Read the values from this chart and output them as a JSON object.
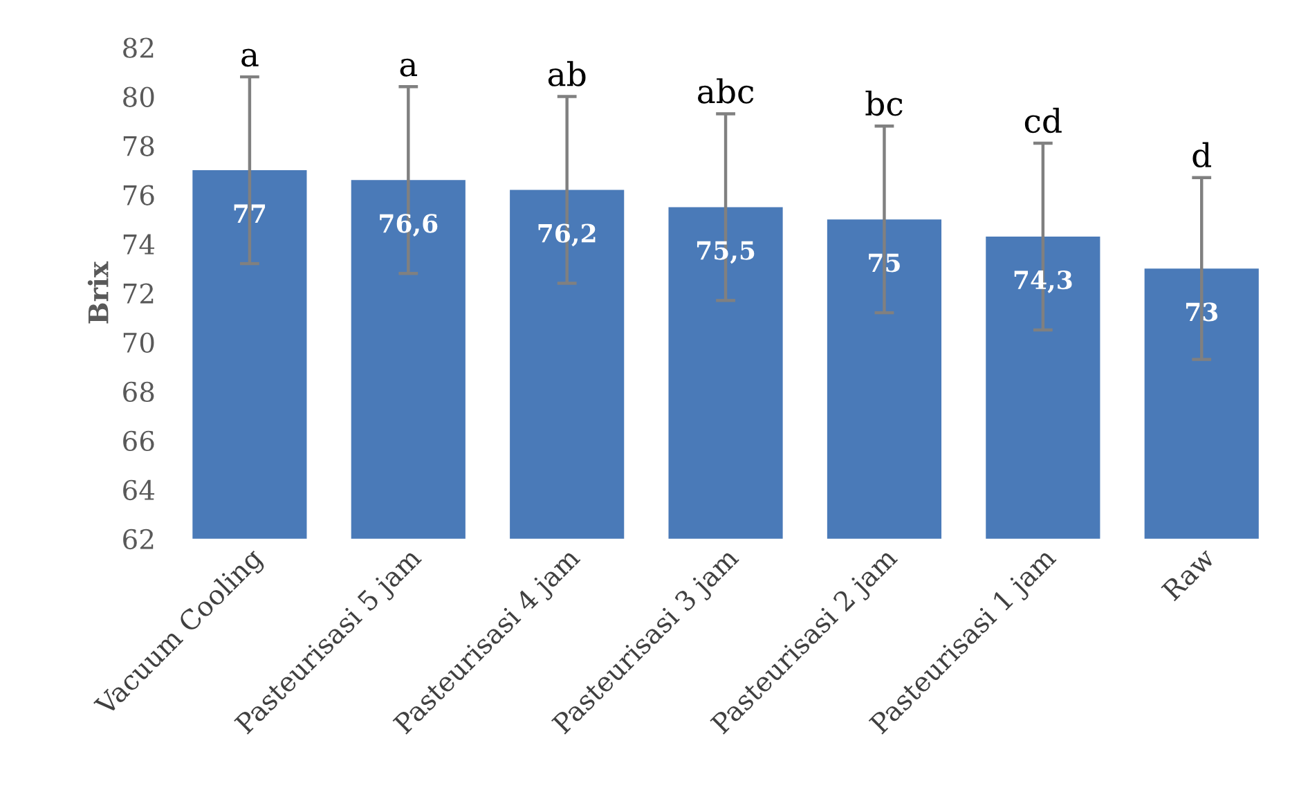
{
  "chart_data": {
    "type": "bar",
    "ylabel": "Brix",
    "categories": [
      "Vacuum Cooling",
      "Pasteurisasi 5 jam",
      "Pasteurisasi 4 jam",
      "Pasteurisasi 3 jam",
      "Pasteurisasi 2 jam",
      "Pasteurisasi 1 jam",
      "Raw"
    ],
    "values": [
      77,
      76.6,
      76.2,
      75.5,
      75,
      74.3,
      73
    ],
    "value_labels": [
      "77",
      "76,6",
      "76,2",
      "75,5",
      "75",
      "74,3",
      "73"
    ],
    "errors": [
      3.8,
      3.8,
      3.8,
      3.8,
      3.8,
      3.8,
      3.7
    ],
    "color": "#4a7ab8",
    "ylim": [
      62,
      82
    ],
    "yticks": [
      62,
      64,
      66,
      68,
      70,
      72,
      74,
      76,
      78,
      80,
      82
    ],
    "grid": false,
    "legend": false,
    "annotations": [
      {
        "text": "a",
        "x": "Vacuum Cooling",
        "y": 80.8
      },
      {
        "text": "a",
        "x": "Pasteurisasi 5 jam",
        "y": 80.4
      },
      {
        "text": "ab",
        "x": "Pasteurisasi 4 jam",
        "y": 80
      },
      {
        "text": "abc",
        "x": "Pasteurisasi 3 jam",
        "y": 79.3
      },
      {
        "text": "bc",
        "x": "Pasteurisasi 2 jam",
        "y": 78.8
      },
      {
        "text": "cd",
        "x": "Pasteurisasi 1 jam",
        "y": 78.1
      },
      {
        "text": "d",
        "x": "Raw",
        "y": 76.7
      }
    ]
  }
}
